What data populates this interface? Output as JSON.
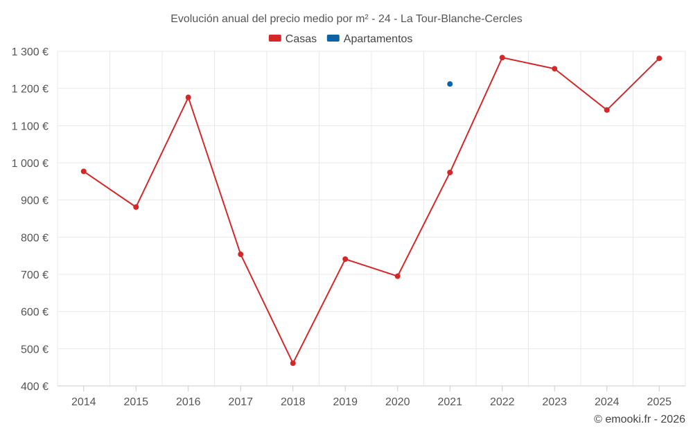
{
  "chart_data": {
    "type": "line",
    "title": "Evolución anual del precio medio por m² - 24 - La Tour-Blanche-Cercles",
    "categories": [
      "2014",
      "2015",
      "2016",
      "2017",
      "2018",
      "2019",
      "2020",
      "2021",
      "2022",
      "2023",
      "2024",
      "2025"
    ],
    "series": [
      {
        "name": "Casas",
        "color": "#d62728",
        "values": [
          977,
          881,
          1176,
          754,
          461,
          741,
          695,
          974,
          1283,
          1253,
          1142,
          1281
        ]
      },
      {
        "name": "Apartamentos",
        "color": "#0b63a5",
        "values": [
          null,
          null,
          null,
          null,
          null,
          null,
          null,
          1212,
          null,
          null,
          null,
          null
        ]
      }
    ],
    "ylim": [
      400,
      1300
    ],
    "yticks": [
      400,
      500,
      600,
      700,
      800,
      900,
      1000,
      1100,
      1200,
      1300
    ],
    "ytick_labels": [
      "400 €",
      "500 €",
      "600 €",
      "700 €",
      "800 €",
      "900 €",
      "1 000 €",
      "1 100 €",
      "1 200 €",
      "1 300 €"
    ],
    "xlabel": "",
    "ylabel": "",
    "grid": true,
    "legend_position": "top-center"
  },
  "credit": "© emooki.fr - 2026"
}
